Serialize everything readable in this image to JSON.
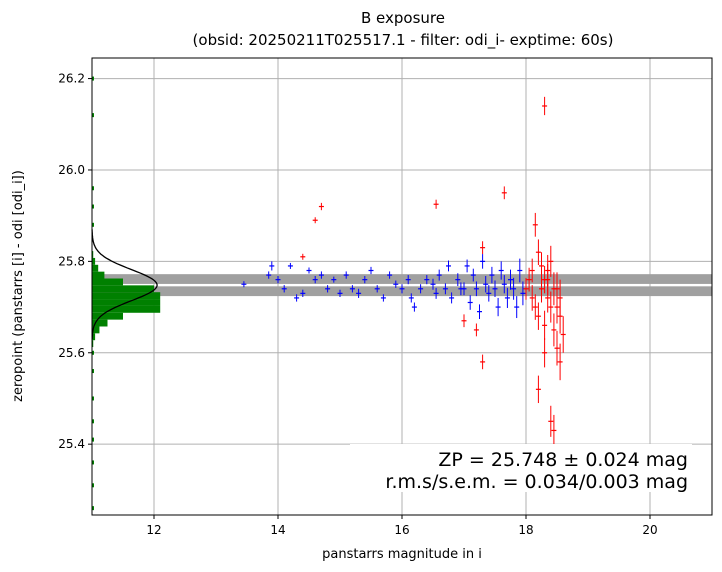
{
  "title_line1": "B exposure",
  "title_line2": "(obsid: 20250211T025517.1 - filter: odi_i- exptime: 60s)",
  "chart_data": {
    "type": "scatter",
    "xlabel": "panstarrs magnitude in i",
    "ylabel": "zeropoint (panstarrs [i] - odi [odi_i])",
    "xlim": [
      11.0,
      21.0
    ],
    "ylim": [
      25.245,
      26.245
    ],
    "xticks": [
      "12",
      "14",
      "16",
      "18",
      "20"
    ],
    "yticks": [
      "25.4",
      "25.6",
      "25.8",
      "26.0",
      "26.2"
    ],
    "grid": true,
    "zp_band": {
      "center": 25.748,
      "half_width": 0.024,
      "color": "#a0a0a0"
    },
    "annotation_line1": "ZP = 25.748 ± 0.024 mag",
    "annotation_line2": "r.m.s/s.e.m. = 0.034/0.003 mag",
    "histogram": {
      "color": "#008000",
      "bins_y": [
        25.605,
        25.62,
        25.635,
        25.65,
        25.665,
        25.68,
        25.695,
        25.71,
        25.725,
        25.74,
        25.755,
        25.77,
        25.785,
        25.8,
        25.815,
        25.83
      ],
      "counts_x": [
        11.0,
        11.02,
        11.05,
        11.12,
        11.25,
        11.5,
        12.1,
        12.1,
        12.1,
        12.0,
        11.5,
        11.2,
        11.1,
        11.05,
        11.02,
        11.0
      ]
    },
    "gaussian_curve_color": "#000000",
    "series": [
      {
        "color": "#0000ff",
        "points": [
          [
            13.45,
            25.75,
            0.006
          ],
          [
            13.85,
            25.77,
            0.008
          ],
          [
            13.9,
            25.79,
            0.01
          ],
          [
            14.0,
            25.76,
            0.008
          ],
          [
            14.1,
            25.74,
            0.008
          ],
          [
            14.2,
            25.79,
            0.006
          ],
          [
            14.3,
            25.72,
            0.008
          ],
          [
            14.4,
            25.73,
            0.008
          ],
          [
            14.5,
            25.78,
            0.006
          ],
          [
            14.6,
            25.76,
            0.008
          ],
          [
            14.7,
            25.77,
            0.008
          ],
          [
            14.8,
            25.74,
            0.008
          ],
          [
            14.9,
            25.76,
            0.006
          ],
          [
            15.0,
            25.73,
            0.008
          ],
          [
            15.1,
            25.77,
            0.008
          ],
          [
            15.2,
            25.74,
            0.008
          ],
          [
            15.3,
            25.73,
            0.01
          ],
          [
            15.4,
            25.76,
            0.008
          ],
          [
            15.5,
            25.78,
            0.008
          ],
          [
            15.6,
            25.74,
            0.008
          ],
          [
            15.7,
            25.72,
            0.008
          ],
          [
            15.8,
            25.77,
            0.008
          ],
          [
            15.9,
            25.75,
            0.008
          ],
          [
            16.0,
            25.74,
            0.01
          ],
          [
            16.1,
            25.76,
            0.01
          ],
          [
            16.15,
            25.72,
            0.01
          ],
          [
            16.2,
            25.7,
            0.01
          ],
          [
            16.3,
            25.74,
            0.01
          ],
          [
            16.4,
            25.76,
            0.01
          ],
          [
            16.5,
            25.75,
            0.012
          ],
          [
            16.55,
            25.73,
            0.012
          ],
          [
            16.6,
            25.77,
            0.012
          ],
          [
            16.7,
            25.74,
            0.012
          ],
          [
            16.75,
            25.79,
            0.012
          ],
          [
            16.8,
            25.72,
            0.012
          ],
          [
            16.9,
            25.76,
            0.014
          ],
          [
            16.95,
            25.74,
            0.014
          ],
          [
            17.0,
            25.74,
            0.014
          ],
          [
            17.05,
            25.79,
            0.014
          ],
          [
            17.1,
            25.71,
            0.016
          ],
          [
            17.15,
            25.77,
            0.014
          ],
          [
            17.2,
            25.74,
            0.016
          ],
          [
            17.25,
            25.69,
            0.016
          ],
          [
            17.3,
            25.8,
            0.016
          ],
          [
            17.35,
            25.75,
            0.018
          ],
          [
            17.4,
            25.73,
            0.018
          ],
          [
            17.45,
            25.77,
            0.018
          ],
          [
            17.5,
            25.74,
            0.018
          ],
          [
            17.55,
            25.7,
            0.02
          ],
          [
            17.6,
            25.78,
            0.02
          ],
          [
            17.65,
            25.75,
            0.02
          ],
          [
            17.7,
            25.72,
            0.022
          ],
          [
            17.75,
            25.76,
            0.022
          ],
          [
            17.8,
            25.74,
            0.024
          ],
          [
            17.85,
            25.7,
            0.024
          ],
          [
            17.9,
            25.78,
            0.026
          ],
          [
            17.95,
            25.73,
            0.026
          ]
        ]
      },
      {
        "color": "#ff0000",
        "points": [
          [
            14.6,
            25.89,
            0.006
          ],
          [
            14.7,
            25.92,
            0.008
          ],
          [
            14.4,
            25.81,
            0.006
          ],
          [
            16.55,
            25.925,
            0.01
          ],
          [
            17.65,
            25.95,
            0.014
          ],
          [
            18.3,
            26.14,
            0.02
          ],
          [
            17.3,
            25.83,
            0.014
          ],
          [
            17.0,
            25.67,
            0.014
          ],
          [
            17.2,
            25.65,
            0.014
          ],
          [
            17.3,
            25.58,
            0.016
          ],
          [
            18.15,
            25.88,
            0.026
          ],
          [
            18.2,
            25.82,
            0.028
          ],
          [
            18.25,
            25.79,
            0.03
          ],
          [
            18.3,
            25.76,
            0.03
          ],
          [
            18.35,
            25.72,
            0.032
          ],
          [
            18.4,
            25.7,
            0.034
          ],
          [
            18.45,
            25.65,
            0.036
          ],
          [
            18.5,
            25.61,
            0.038
          ],
          [
            18.55,
            25.58,
            0.04
          ],
          [
            18.05,
            25.76,
            0.026
          ],
          [
            18.1,
            25.72,
            0.028
          ],
          [
            18.15,
            25.7,
            0.028
          ],
          [
            18.2,
            25.68,
            0.03
          ],
          [
            18.25,
            25.74,
            0.03
          ],
          [
            18.3,
            25.66,
            0.032
          ],
          [
            18.35,
            25.78,
            0.034
          ],
          [
            18.4,
            25.8,
            0.034
          ],
          [
            18.45,
            25.74,
            0.036
          ],
          [
            18.5,
            25.7,
            0.036
          ],
          [
            18.55,
            25.68,
            0.038
          ],
          [
            18.6,
            25.64,
            0.04
          ],
          [
            18.2,
            25.52,
            0.03
          ],
          [
            18.4,
            25.45,
            0.034
          ],
          [
            18.45,
            25.43,
            0.034
          ],
          [
            18.3,
            25.6,
            0.032
          ],
          [
            18.0,
            25.74,
            0.024
          ],
          [
            18.1,
            25.78,
            0.026
          ],
          [
            18.35,
            25.76,
            0.034
          ],
          [
            18.5,
            25.74,
            0.036
          ],
          [
            18.55,
            25.72,
            0.04
          ]
        ]
      }
    ]
  }
}
